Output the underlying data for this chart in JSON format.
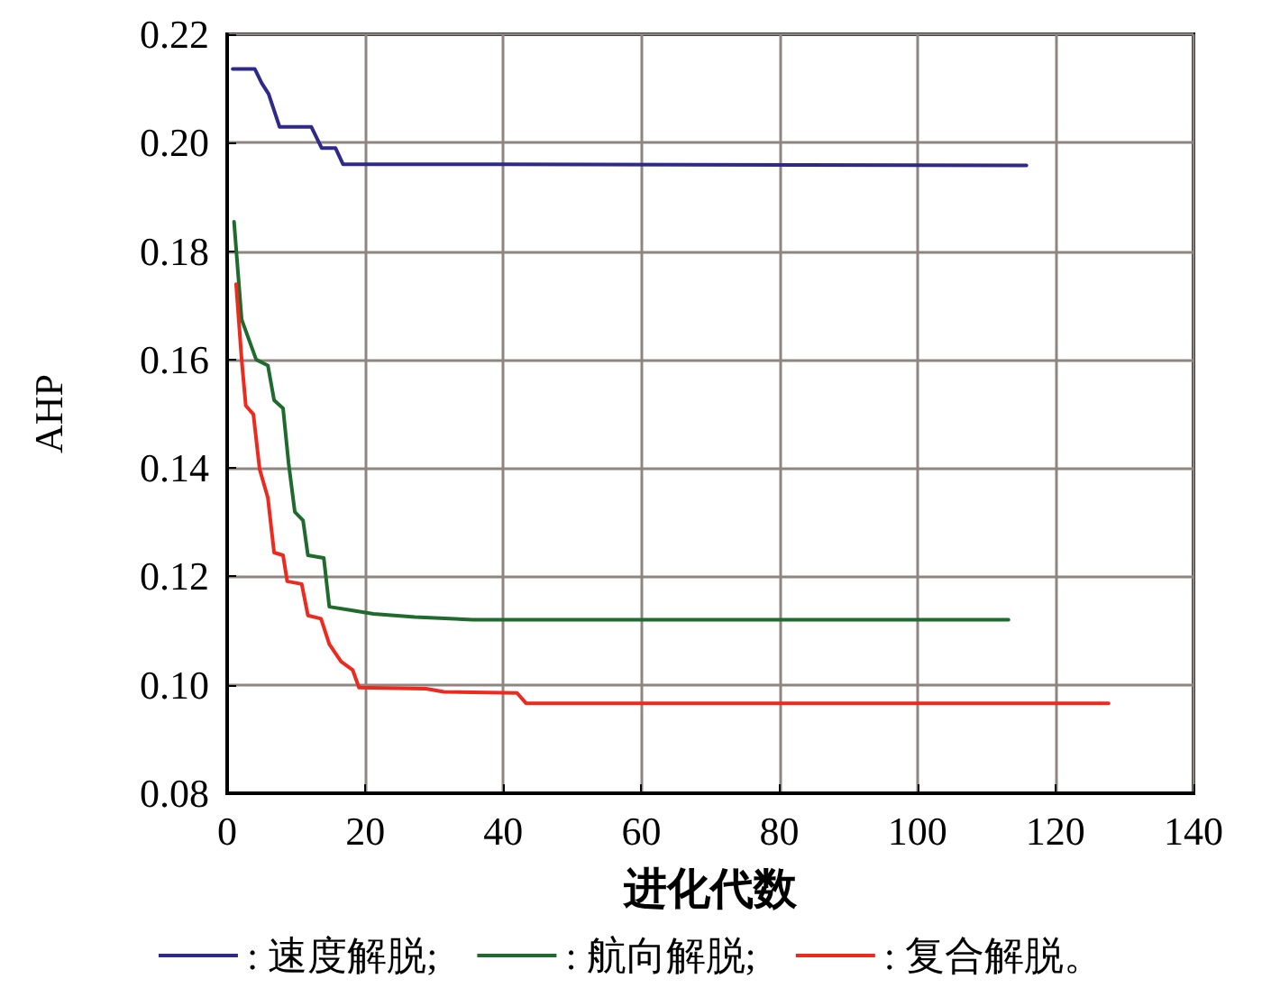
{
  "chart_data": {
    "type": "line",
    "xlabel": "进化代数",
    "ylabel": "AHP",
    "xlim": [
      0,
      140
    ],
    "xticks": [
      0,
      20,
      40,
      60,
      80,
      100,
      120,
      140
    ],
    "ylim": [
      0.08,
      0.22
    ],
    "yticks": [
      {
        "value": 0.08,
        "label": "0.08"
      },
      {
        "value": 0.1,
        "label": "0.10"
      },
      {
        "value": 0.12,
        "label": "0.12"
      },
      {
        "value": 0.14,
        "label": "0.14"
      },
      {
        "value": 0.16,
        "label": "0.16"
      },
      {
        "value": 0.18,
        "label": "0.18"
      },
      {
        "value": 0.2,
        "label": "0.20"
      },
      {
        "value": 0.22,
        "label": "0.22"
      }
    ],
    "grid": true,
    "legend": "bottom",
    "marker": "none",
    "line_style": "solid",
    "series": [
      {
        "name": ": 速度解脱;",
        "color": "#2e2a8a",
        "x": [
          0.8,
          4,
          5,
          6,
          7.6,
          12.2,
          13.7,
          15.7,
          16.8,
          40,
          115.8
        ],
        "values": [
          0.2136,
          0.2136,
          0.211,
          0.209,
          0.2029,
          0.2029,
          0.199,
          0.199,
          0.196,
          0.196,
          0.1958
        ]
      },
      {
        "name": ": 航向解脱;",
        "color": "#1f6b2e",
        "x": [
          1,
          2.1,
          4.2,
          5.9,
          6.8,
          8.1,
          8.9,
          9.8,
          11,
          11.7,
          14,
          14.8,
          17.8,
          21.2,
          27.2,
          35.6,
          113.2
        ],
        "values": [
          0.1854,
          0.1674,
          0.16,
          0.1589,
          0.1525,
          0.151,
          0.1409,
          0.1319,
          0.1303,
          0.1239,
          0.1234,
          0.1144,
          0.1138,
          0.1131,
          0.1125,
          0.112,
          0.112
        ]
      },
      {
        "name": ": 复合解脱。",
        "color": "#ee2a1e",
        "x": [
          1.3,
          2.1,
          2.7,
          3.8,
          4.7,
          5.9,
          6.8,
          8.1,
          8.7,
          10.8,
          11.7,
          13.6,
          14.8,
          16.5,
          18.2,
          19.1,
          28.8,
          31.4,
          42,
          43.3,
          127.7
        ],
        "values": [
          0.1739,
          0.16,
          0.1515,
          0.1499,
          0.1398,
          0.1345,
          0.1244,
          0.1239,
          0.1191,
          0.1186,
          0.1128,
          0.1122,
          0.1075,
          0.1043,
          0.1027,
          0.0995,
          0.0993,
          0.0987,
          0.0985,
          0.0966,
          0.0966
        ]
      }
    ]
  }
}
